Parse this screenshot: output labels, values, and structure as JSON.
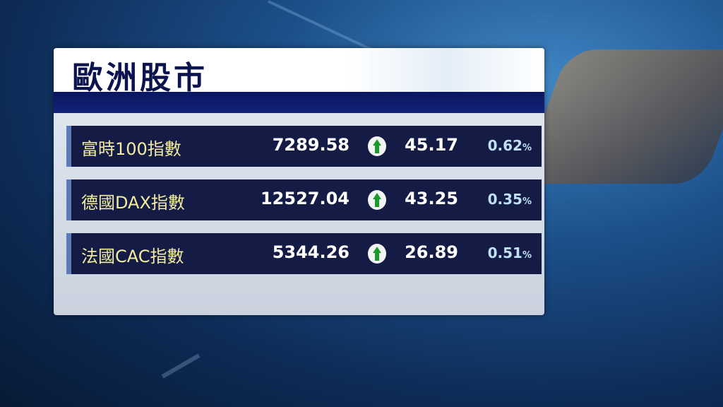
{
  "title": "歐洲股市",
  "rows": [
    {
      "name": "富時100指數",
      "value": "7289.58",
      "direction": "up",
      "change": "45.17",
      "percent": "0.62",
      "percent_sign": "%"
    },
    {
      "name": "德國DAX指數",
      "value": "12527.04",
      "direction": "up",
      "change": "43.25",
      "percent": "0.35",
      "percent_sign": "%"
    },
    {
      "name": "法國CAC指數",
      "value": "5344.26",
      "direction": "up",
      "change": "26.89",
      "percent": "0.51",
      "percent_sign": "%"
    }
  ],
  "colors": {
    "up_arrow": "#1a9a2a",
    "title": "#0c1450",
    "row_bg": "#141c46",
    "name_text": "#f3eca0",
    "percent_text": "#bfe0f5"
  }
}
